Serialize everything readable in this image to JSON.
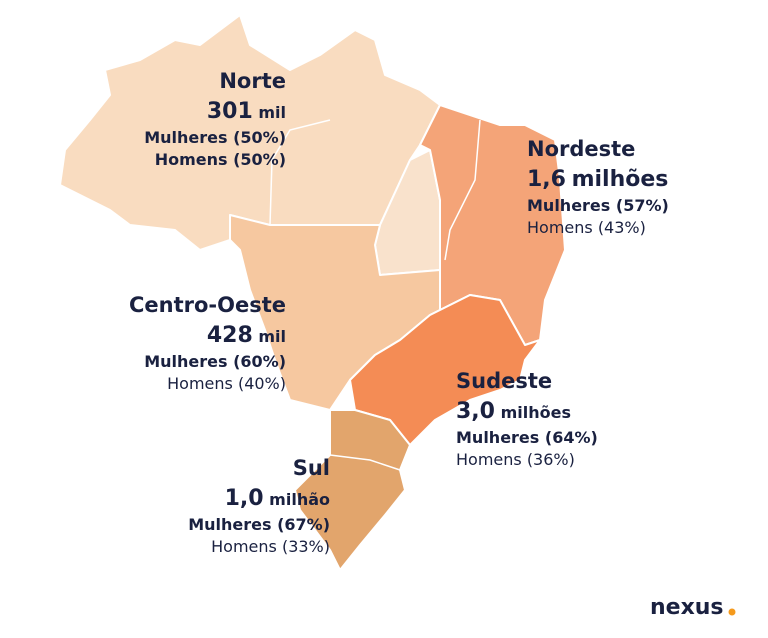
{
  "regions": [
    {
      "name": "Norte",
      "value": "301",
      "unit": "mil",
      "women": "Mulheres (50%)",
      "men": "Homens (50%)"
    },
    {
      "name": "Nordeste",
      "value": "1,6",
      "unit": "milhões",
      "women": "Mulheres (57%)",
      "men": "Homens (43%)"
    },
    {
      "name": "Centro-Oeste",
      "value": "428",
      "unit": "mil",
      "women": "Mulheres (60%)",
      "men": "Homens (40%)"
    },
    {
      "name": "Sudeste",
      "value": "3,0",
      "unit": "milhões",
      "women": "Mulheres (64%)",
      "men": "Homens (36%)"
    },
    {
      "name": "Sul",
      "value": "1,0",
      "unit": "milhão",
      "women": "Mulheres (67%)",
      "men": "Homens (33%)"
    }
  ],
  "logo": "nexus"
}
